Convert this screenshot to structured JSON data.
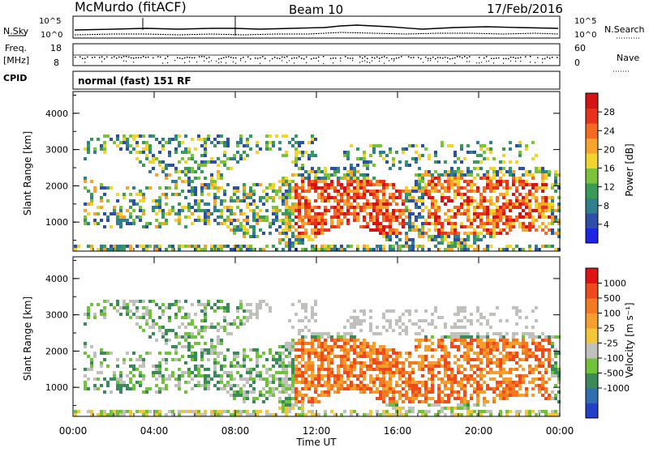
{
  "header": {
    "station": "McMurdo (fitACF)",
    "beam": "Beam 10",
    "date": "17/Feb/2016"
  },
  "noise_panel": {
    "left_label": "N.Sky",
    "right_label": "N.Search",
    "y_ticks_left": [
      "10^5",
      "10^0"
    ],
    "y_ticks_right": [
      "10^5",
      "10^0"
    ]
  },
  "freq_panel": {
    "label_line1": "Freq.",
    "label_line2": "[MHz]",
    "y_ticks_left": [
      "18",
      "8"
    ],
    "right_label": "Nave",
    "y_ticks_right": [
      "60",
      "0"
    ]
  },
  "cpid_panel": {
    "label": "CPID",
    "value": "normal (fast) 151 RF"
  },
  "chart_data": [
    {
      "type": "heatmap",
      "title": "",
      "xlabel": "",
      "ylabel": "Slant Range [km]",
      "y_ticks": [
        "1000",
        "2000",
        "3000",
        "4000"
      ],
      "ylim": [
        200,
        4600
      ],
      "x_ticks": [
        "00:00",
        "04:00",
        "08:00",
        "12:00",
        "16:00",
        "20:00",
        "00:00"
      ],
      "colorbar": {
        "label": "Power [dB]",
        "ticks": [
          "4",
          "8",
          "12",
          "16",
          "20",
          "24",
          "28"
        ],
        "range": [
          0,
          32
        ],
        "colors": [
          "#1f25e6",
          "#2d4fa8",
          "#2f7f8e",
          "#3a9a57",
          "#7cc23a",
          "#f2d431",
          "#f7a32d",
          "#f46a22",
          "#e8321c",
          "#d41414"
        ]
      }
    },
    {
      "type": "heatmap",
      "title": "",
      "xlabel": "Time UT",
      "ylabel": "Slant Range [km]",
      "y_ticks": [
        "1000",
        "2000",
        "3000",
        "4000"
      ],
      "ylim": [
        200,
        4600
      ],
      "x_ticks": [
        "00:00",
        "04:00",
        "08:00",
        "12:00",
        "16:00",
        "20:00",
        "00:00"
      ],
      "colorbar": {
        "label": "Velocity [m s⁻¹]",
        "ticks": [
          "1000",
          "500",
          "100",
          "25",
          "-25",
          "-100",
          "-500",
          "-1000"
        ],
        "colors": [
          "#2240c8",
          "#2f6fb0",
          "#3a8a5a",
          "#6fc23a",
          "#c0c0bc",
          "#f2c53a",
          "#f5a02e",
          "#f47a22",
          "#ef4a1c",
          "#e01414"
        ]
      }
    }
  ]
}
